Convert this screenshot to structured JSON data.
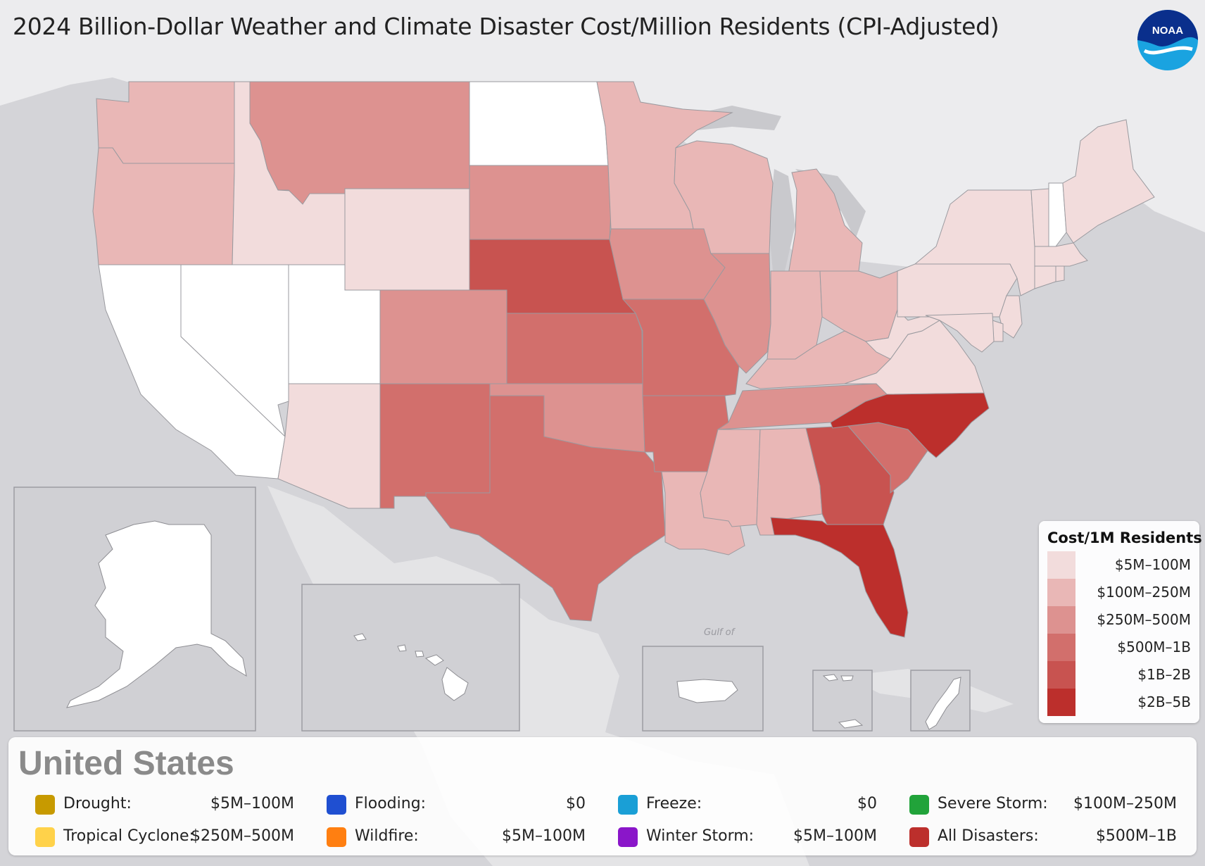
{
  "title": "2024 Billion-Dollar Weather and Climate Disaster Cost/Million Residents (CPI-Adjusted)",
  "logo": {
    "text": "NOAA",
    "icon": "noaa-logo-icon"
  },
  "colors": {
    "bin0": "#ffffff",
    "bin1": "#f2dcdc",
    "bin2": "#e9b7b6",
    "bin3": "#dd9290",
    "bin4": "#d26f6c",
    "bin5": "#c85350",
    "bin6": "#bc2f2c"
  },
  "legend": {
    "title": "Cost/1M Residents",
    "bins": [
      {
        "label": "$5M–100M",
        "color": "#f2dcdc"
      },
      {
        "label": "$100M–250M",
        "color": "#e9b7b6"
      },
      {
        "label": "$250M–500M",
        "color": "#dd9290"
      },
      {
        "label": "$500M–1B",
        "color": "#d26f6c"
      },
      {
        "label": "$1B–2B",
        "color": "#c85350"
      },
      {
        "label": "$2B–5B",
        "color": "#bc2f2c"
      }
    ]
  },
  "map_labels": {
    "gulf": "Gulf of"
  },
  "summary": {
    "region": "United States",
    "hazards": [
      {
        "label": "Drought:",
        "value": "$5M–100M",
        "color": "#c79a00",
        "icon": "drought-icon"
      },
      {
        "label": "Flooding:",
        "value": "$0",
        "color": "#1f4fd1",
        "icon": "flooding-icon"
      },
      {
        "label": "Freeze:",
        "value": "$0",
        "color": "#1a9fd6",
        "icon": "freeze-icon"
      },
      {
        "label": "Severe Storm:",
        "value": "$100M–250M",
        "color": "#21a33a",
        "icon": "severe-storm-icon"
      },
      {
        "label": "Tropical Cyclone:",
        "value": "$250M–500M",
        "color": "#ffd24a",
        "icon": "tropical-cyclone-icon"
      },
      {
        "label": "Wildfire:",
        "value": "$5M–100M",
        "color": "#ff7f11",
        "icon": "wildfire-icon"
      },
      {
        "label": "Winter Storm:",
        "value": "$5M–100M",
        "color": "#8a16c9",
        "icon": "winter-storm-icon"
      },
      {
        "label": "All Disasters:",
        "value": "$500M–1B",
        "color": "#bc2f2c",
        "icon": "all-disasters-icon"
      }
    ]
  },
  "states": [
    {
      "name": "WA",
      "bin": 2
    },
    {
      "name": "OR",
      "bin": 2
    },
    {
      "name": "ID",
      "bin": 1
    },
    {
      "name": "MT",
      "bin": 3
    },
    {
      "name": "WY",
      "bin": 1
    },
    {
      "name": "ND",
      "bin": 0
    },
    {
      "name": "SD",
      "bin": 3
    },
    {
      "name": "NE",
      "bin": 5
    },
    {
      "name": "CA",
      "bin": 0
    },
    {
      "name": "NV",
      "bin": 0
    },
    {
      "name": "UT",
      "bin": 0
    },
    {
      "name": "CO",
      "bin": 3
    },
    {
      "name": "AZ",
      "bin": 1
    },
    {
      "name": "NM",
      "bin": 4
    },
    {
      "name": "KS",
      "bin": 4
    },
    {
      "name": "OK",
      "bin": 3
    },
    {
      "name": "TX",
      "bin": 4
    },
    {
      "name": "MN",
      "bin": 2
    },
    {
      "name": "IA",
      "bin": 3
    },
    {
      "name": "MO",
      "bin": 4
    },
    {
      "name": "AR",
      "bin": 4
    },
    {
      "name": "LA",
      "bin": 2
    },
    {
      "name": "WI",
      "bin": 2
    },
    {
      "name": "IL",
      "bin": 3
    },
    {
      "name": "MI",
      "bin": 2
    },
    {
      "name": "IN",
      "bin": 2
    },
    {
      "name": "OH",
      "bin": 2
    },
    {
      "name": "KY",
      "bin": 2
    },
    {
      "name": "TN",
      "bin": 3
    },
    {
      "name": "MS",
      "bin": 2
    },
    {
      "name": "AL",
      "bin": 2
    },
    {
      "name": "GA",
      "bin": 5
    },
    {
      "name": "FL",
      "bin": 6
    },
    {
      "name": "SC",
      "bin": 4
    },
    {
      "name": "NC",
      "bin": 6
    },
    {
      "name": "VA",
      "bin": 1
    },
    {
      "name": "WV",
      "bin": 1
    },
    {
      "name": "PA",
      "bin": 1
    },
    {
      "name": "NY",
      "bin": 1
    },
    {
      "name": "VT",
      "bin": 1
    },
    {
      "name": "NH",
      "bin": 0
    },
    {
      "name": "ME",
      "bin": 1
    },
    {
      "name": "MA",
      "bin": 1
    },
    {
      "name": "CT",
      "bin": 1
    },
    {
      "name": "RI",
      "bin": 1
    },
    {
      "name": "NJ",
      "bin": 1
    },
    {
      "name": "DE",
      "bin": 1
    },
    {
      "name": "MD",
      "bin": 1
    },
    {
      "name": "AK",
      "bin": 0
    },
    {
      "name": "HI",
      "bin": 0
    },
    {
      "name": "PR",
      "bin": 0
    },
    {
      "name": "VI",
      "bin": 0
    },
    {
      "name": "GU",
      "bin": 0
    }
  ]
}
